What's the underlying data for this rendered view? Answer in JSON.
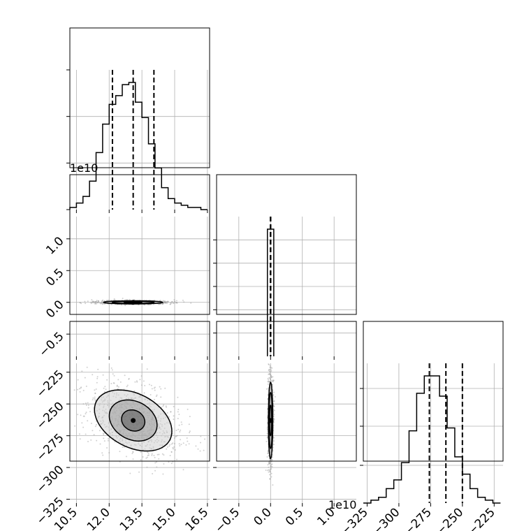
{
  "chart_data": {
    "type": "corner",
    "grid": true,
    "parameters": [
      {
        "axis_range": [
          10.2,
          16.6
        ],
        "ticks": [
          10.5,
          12.0,
          13.5,
          15.0,
          16.5
        ],
        "tick_labels": [
          "10.5",
          "12.0",
          "13.5",
          "15.0",
          "16.5"
        ],
        "quantiles": [
          12.15,
          13.1,
          14.05
        ]
      },
      {
        "axis_range": [
          -0.85,
          1.35
        ],
        "ticks": [
          -0.5,
          0.0,
          0.5,
          1.0
        ],
        "tick_labels": [
          "−0.5",
          "0.0",
          "0.5",
          "1.0"
        ],
        "offset_text": "1e10",
        "quantiles": [
          0.0,
          0.0,
          0.0
        ]
      },
      {
        "axis_range": [
          -328,
          -218
        ],
        "ticks": [
          -325,
          -300,
          -275,
          -250,
          -225
        ],
        "tick_labels": [
          "−325",
          "−300",
          "−275",
          "−250",
          "−225"
        ],
        "quantiles": [
          -276,
          -263,
          -250
        ]
      }
    ],
    "histograms": [
      {
        "param": 0,
        "bin_edges": [
          10.2,
          10.5,
          10.8,
          11.1,
          11.4,
          11.7,
          12.0,
          12.3,
          12.6,
          12.9,
          13.2,
          13.5,
          13.8,
          14.1,
          14.4,
          14.7,
          15.0,
          15.3,
          15.6,
          15.9,
          16.2,
          16.5
        ],
        "counts": [
          1,
          3,
          6,
          13,
          26,
          39,
          48,
          52,
          57,
          58,
          49,
          42,
          30,
          19,
          10,
          5,
          3,
          2,
          1,
          1,
          0
        ]
      },
      {
        "param": 1,
        "bin_edges": [
          -0.05,
          0.0,
          0.05
        ],
        "counts": [
          100,
          100
        ]
      },
      {
        "param": 2,
        "bin_edges": [
          -328,
          -322,
          -316,
          -310,
          -304,
          -298,
          -292,
          -286,
          -280,
          -274,
          -268,
          -262,
          -256,
          -250,
          -244,
          -238,
          -232,
          -226,
          -220
        ],
        "counts": [
          0,
          1,
          2,
          5,
          8,
          14,
          25,
          38,
          44,
          44,
          37,
          26,
          16,
          10,
          5,
          2,
          1,
          0
        ]
      }
    ],
    "scatter_2d": [
      {
        "x_param": 0,
        "y_param": 1,
        "center": [
          13.1,
          0.0
        ],
        "contours": [
          {
            "rx": 0.4,
            "ry": 0.007
          },
          {
            "rx": 0.95,
            "ry": 0.017
          },
          {
            "rx": 1.35,
            "ry": 0.025
          }
        ]
      },
      {
        "x_param": 0,
        "y_param": 2,
        "center": [
          13.1,
          -263
        ],
        "contours": [
          {
            "rx": 0.55,
            "ry": 8,
            "angle_deg": 28
          },
          {
            "rx": 1.15,
            "ry": 15,
            "angle_deg": 28
          },
          {
            "rx": 1.9,
            "ry": 21,
            "angle_deg": 28
          }
        ]
      },
      {
        "x_param": 1,
        "y_param": 2,
        "center": [
          0.0,
          -263
        ],
        "contours": [
          {
            "rx": 0.018,
            "ry": 12
          },
          {
            "rx": 0.028,
            "ry": 22
          },
          {
            "rx": 0.035,
            "ry": 30
          }
        ]
      }
    ]
  }
}
